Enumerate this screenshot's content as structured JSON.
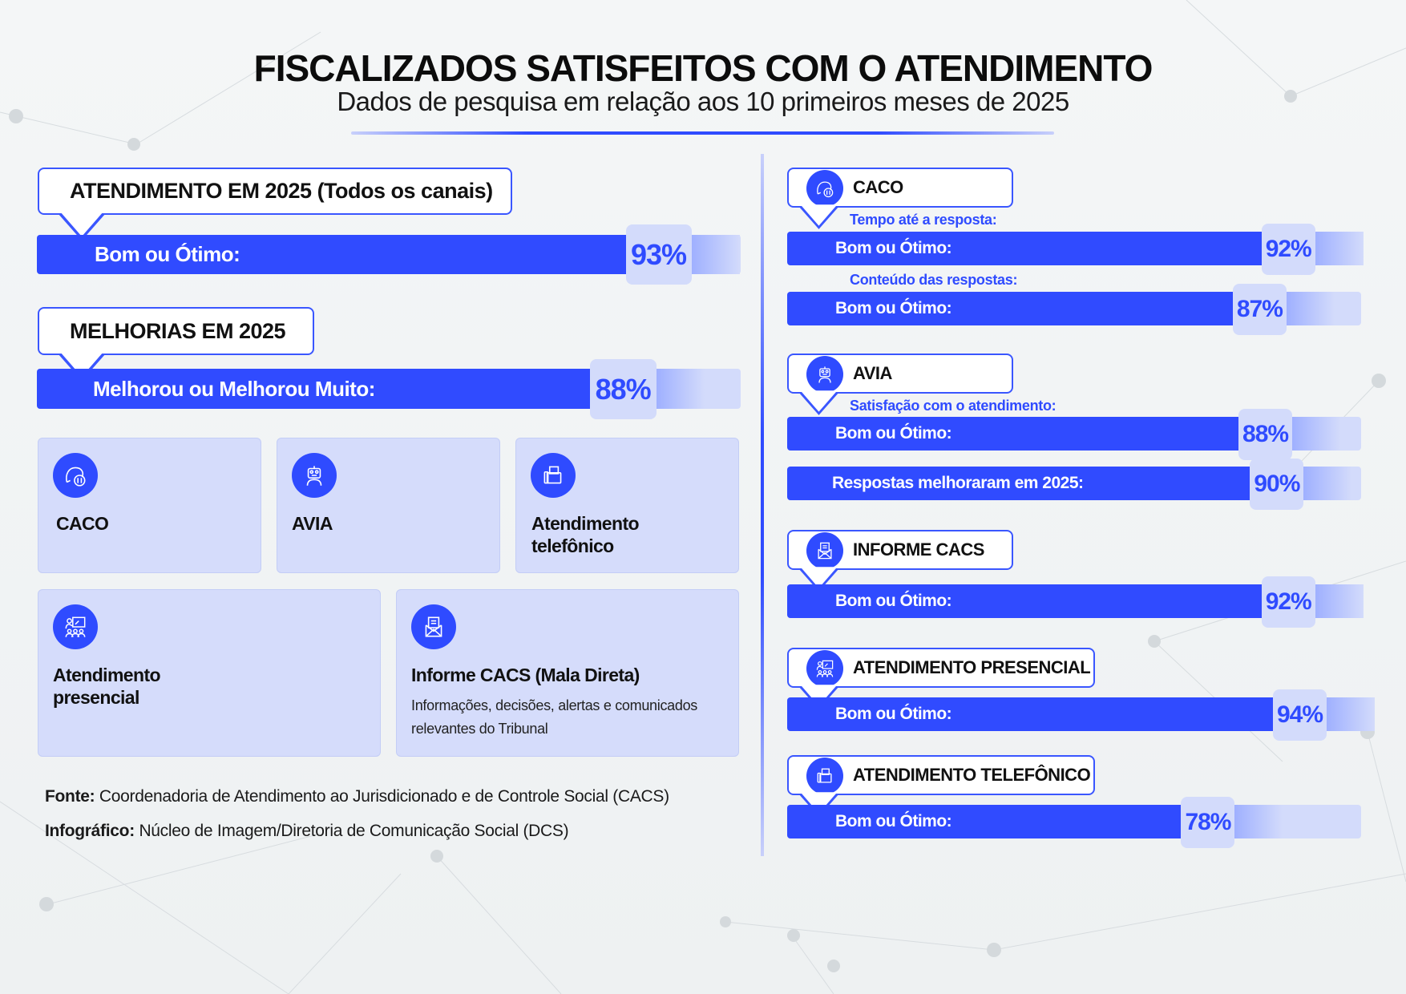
{
  "header": {
    "title": "FISCALIZADOS SATISFEITOS COM O ATENDIMENTO",
    "subtitle": "Dados de pesquisa em relação aos 10 primeiros meses de 2025"
  },
  "left": {
    "atendimento": {
      "heading": "ATENDIMENTO EM 2025 (Todos os canais)",
      "label": "Bom ou Ótimo:",
      "value": 93,
      "value_text": "93%"
    },
    "melhorias": {
      "heading": "MELHORIAS EM 2025",
      "label": "Melhorou ou Melhorou Muito:",
      "value": 88,
      "value_text": "88%"
    },
    "channels": [
      {
        "name": "CACO",
        "icon": "chat-support-icon"
      },
      {
        "name": "AVIA",
        "icon": "robot-icon"
      },
      {
        "name": "Atendimento telefônico",
        "icon": "phone-fax-icon"
      },
      {
        "name": "Atendimento presencial",
        "icon": "presentation-people-icon"
      },
      {
        "name": "Informe CACS (Mala Direta)",
        "description": "Informações, decisões, alertas e comunicados relevantes do Tribunal",
        "icon": "envelope-letter-icon"
      }
    ],
    "fonte_label": "Fonte:",
    "fonte": "Coordenadoria de Atendimento ao Jurisdicionado e de Controle Social (CACS)",
    "infografico_label": "Infográfico:",
    "infografico": "Núcleo de Imagem/Diretoria de Comunicação Social (DCS)"
  },
  "right": {
    "caco": {
      "title": "CACO",
      "sub1": "Tempo até a resposta:",
      "bar1": {
        "label": "Bom ou Ótimo:",
        "value": 92,
        "value_text": "92%"
      },
      "sub2": "Conteúdo das respostas:",
      "bar2": {
        "label": "Bom ou Ótimo:",
        "value": 87,
        "value_text": "87%"
      }
    },
    "avia": {
      "title": "AVIA",
      "sub1": "Satisfação com o atendimento:",
      "bar1": {
        "label": "Bom ou Ótimo:",
        "value": 88,
        "value_text": "88%"
      },
      "bar2": {
        "label": "Respostas melhoraram em 2025:",
        "value": 90,
        "value_text": "90%"
      }
    },
    "informe": {
      "title": "INFORME CACS",
      "bar1": {
        "label": "Bom ou Ótimo:",
        "value": 92,
        "value_text": "92%"
      }
    },
    "presencial": {
      "title": "ATENDIMENTO PRESENCIAL",
      "bar1": {
        "label": "Bom ou Ótimo:",
        "value": 94,
        "value_text": "94%"
      }
    },
    "telefonico": {
      "title": "ATENDIMENTO TELEFÔNICO",
      "bar1": {
        "label": "Bom ou Ótimo:",
        "value": 78,
        "value_text": "78%"
      }
    }
  },
  "colors": {
    "accent": "#304bff",
    "light": "#d3dbfb"
  }
}
